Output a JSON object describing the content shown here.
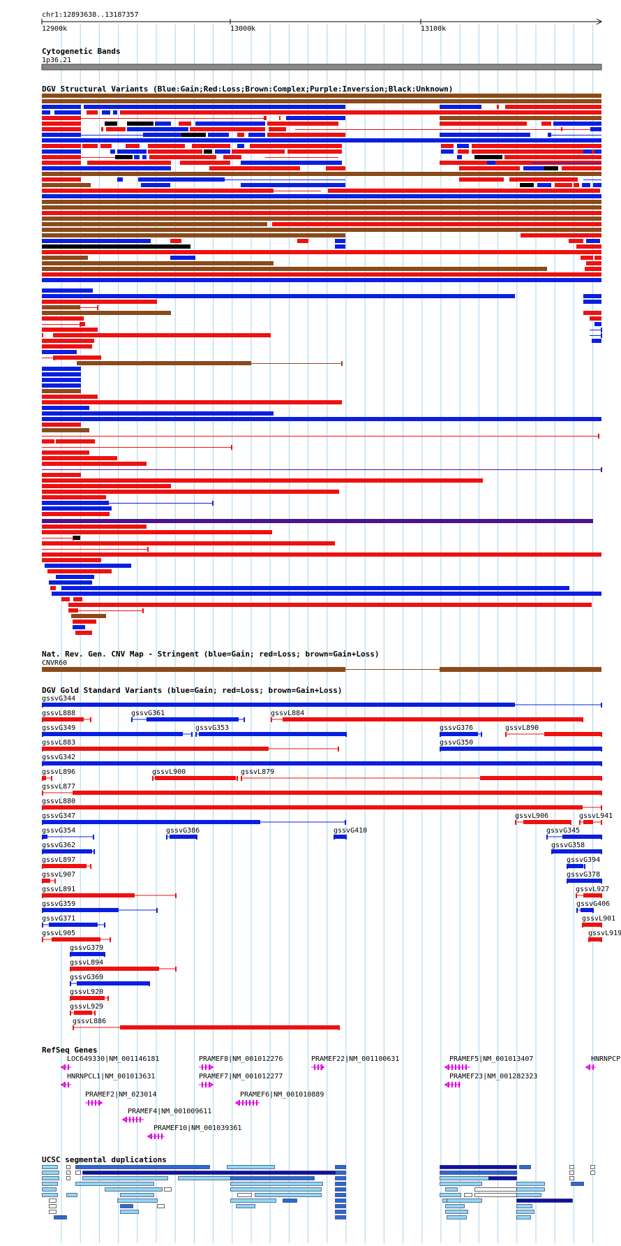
{
  "locus": "chr1:12893638..13187357",
  "ruler": {
    "ticks": [
      {
        "label": "12900k",
        "pos": 12900000
      },
      {
        "label": "13000k",
        "pos": 13000000
      },
      {
        "label": "13100k",
        "pos": 13100000
      }
    ]
  },
  "colors": {
    "gain": "#0a1fe0",
    "loss": "#ee1111",
    "complex": "#8b4a1a",
    "inversion": "#4b148c",
    "unknown": "#000000",
    "gene": "#e000e0",
    "grid": "#a8d4ec"
  },
  "tracks": {
    "cytoband": {
      "title": "Cytogenetic Bands",
      "band": "1p36.21"
    },
    "dgv": {
      "title": "DGV Structural Variants (Blue:Gain;Red:Loss;Brown:Complex;Purple:Inversion;Black:Unknown)"
    },
    "cnv_map": {
      "title": "Nat. Rev. Gen. CNV Map - Stringent (blue=Gain; red=Loss; brown=Gain+Loss)",
      "feature": "CNVR60"
    },
    "gold": {
      "title": "DGV Gold Standard Variants (blue=Gain; red=Loss; brown=Gain+Loss)",
      "features": [
        {
          "label": "gssvG344",
          "type": "gain"
        },
        {
          "label": "gssvL888",
          "type": "loss"
        },
        {
          "label": "gssvG361",
          "type": "gain"
        },
        {
          "label": "gssvL884",
          "type": "loss"
        },
        {
          "label": "gssvG349",
          "type": "gain"
        },
        {
          "label": "gssvG353",
          "type": "gain"
        },
        {
          "label": "gssvG376",
          "type": "gain"
        },
        {
          "label": "gssvL890",
          "type": "loss"
        },
        {
          "label": "gssvL883",
          "type": "loss"
        },
        {
          "label": "gssvG350",
          "type": "gain"
        },
        {
          "label": "gssvG342",
          "type": "gain"
        },
        {
          "label": "gssvL896",
          "type": "loss"
        },
        {
          "label": "gssvL900",
          "type": "loss"
        },
        {
          "label": "gssvL879",
          "type": "loss"
        },
        {
          "label": "gssvL877",
          "type": "loss"
        },
        {
          "label": "gssvL880",
          "type": "loss"
        },
        {
          "label": "gssvG347",
          "type": "gain"
        },
        {
          "label": "gssvL906",
          "type": "loss"
        },
        {
          "label": "gssvL941",
          "type": "loss"
        },
        {
          "label": "gssvG354",
          "type": "gain"
        },
        {
          "label": "gssvG386",
          "type": "gain"
        },
        {
          "label": "gssvG410",
          "type": "gain"
        },
        {
          "label": "gssvG345",
          "type": "gain"
        },
        {
          "label": "gssvG362",
          "type": "gain"
        },
        {
          "label": "gssvG358",
          "type": "gain"
        },
        {
          "label": "gssvL897",
          "type": "loss"
        },
        {
          "label": "gssvG394",
          "type": "gain"
        },
        {
          "label": "gssvL907",
          "type": "loss"
        },
        {
          "label": "gssvG378",
          "type": "gain"
        },
        {
          "label": "gssvL891",
          "type": "loss"
        },
        {
          "label": "gssvL927",
          "type": "loss"
        },
        {
          "label": "gssvG359",
          "type": "gain"
        },
        {
          "label": "gssvG406",
          "type": "gain"
        },
        {
          "label": "gssvG371",
          "type": "gain"
        },
        {
          "label": "gssvL901",
          "type": "loss"
        },
        {
          "label": "gssvL905",
          "type": "loss"
        },
        {
          "label": "gssvL919",
          "type": "loss"
        },
        {
          "label": "gssvG379",
          "type": "gain"
        },
        {
          "label": "gssvL894",
          "type": "loss"
        },
        {
          "label": "gssvG369",
          "type": "gain"
        },
        {
          "label": "gssvL920",
          "type": "loss"
        },
        {
          "label": "gssvL929",
          "type": "loss"
        },
        {
          "label": "gssvL886",
          "type": "loss"
        }
      ]
    },
    "refseq": {
      "title": "RefSeq Genes",
      "genes": [
        {
          "label": "LOC649330|NM_001146181",
          "strand": "-"
        },
        {
          "label": "PRAMEF8|NM_001012276",
          "strand": "+"
        },
        {
          "label": "PRAMEF22|NM_001100631",
          "strand": "+"
        },
        {
          "label": "PRAMEF5|NM_001013407",
          "strand": "-"
        },
        {
          "label": "HNRNPCP",
          "strand": "-"
        },
        {
          "label": "HNRNPCL1|NM_001013631",
          "strand": "-"
        },
        {
          "label": "PRAMEF7|NM_001012277",
          "strand": "+"
        },
        {
          "label": "PRAMEF23|NM_001282323",
          "strand": "-"
        },
        {
          "label": "PRAMEF2|NM_023014",
          "strand": "+"
        },
        {
          "label": "PRAMEF6|NM_001010889",
          "strand": "-"
        },
        {
          "label": "PRAMEF4|NM_001009611",
          "strand": "-"
        },
        {
          "label": "PRAMEF10|NM_001039361",
          "strand": "-"
        }
      ]
    },
    "segdups": {
      "title": "UCSC segmental duplications"
    }
  }
}
